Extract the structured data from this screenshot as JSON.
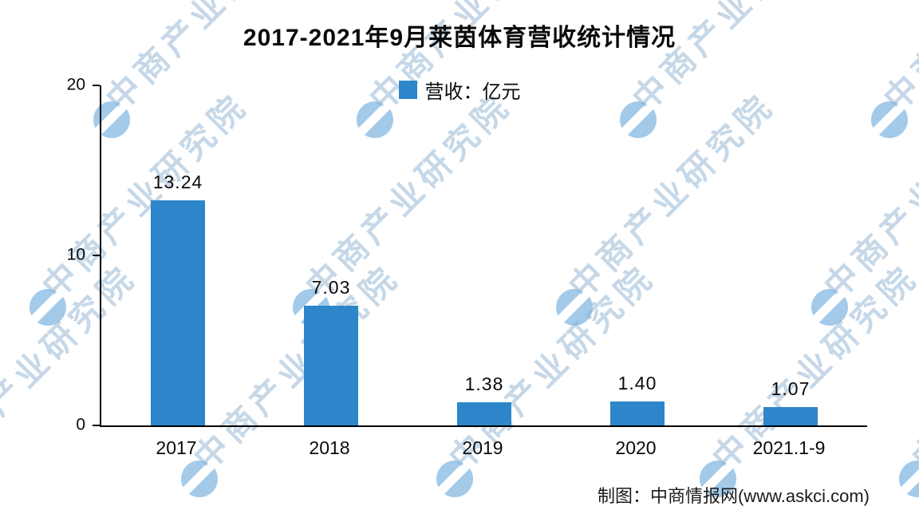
{
  "title": "2017-2021年9月莱茵体育营收统计情况",
  "legend": {
    "label": "营收：亿元"
  },
  "watermark": {
    "text": "中商产业研究院"
  },
  "footer": {
    "credit": "制图：中商情报网(www.askci.com)"
  },
  "chart_data": {
    "type": "bar",
    "title": "2017-2021年9月莱茵体育营收统计情况",
    "categories": [
      "2017",
      "2018",
      "2019",
      "2020",
      "2021.1-9"
    ],
    "values": [
      13.24,
      7.03,
      1.38,
      1.4,
      1.07
    ],
    "value_labels": [
      "13.24",
      "7.03",
      "1.38",
      "1.40",
      "1.07"
    ],
    "xlabel": "",
    "ylabel": "",
    "ylim": [
      0,
      20
    ],
    "yticks": [
      "0",
      "10",
      "20"
    ],
    "legend": [
      "营收：亿元"
    ],
    "legend_position": "top",
    "grid": false,
    "bar_color": "#2d86c9"
  }
}
